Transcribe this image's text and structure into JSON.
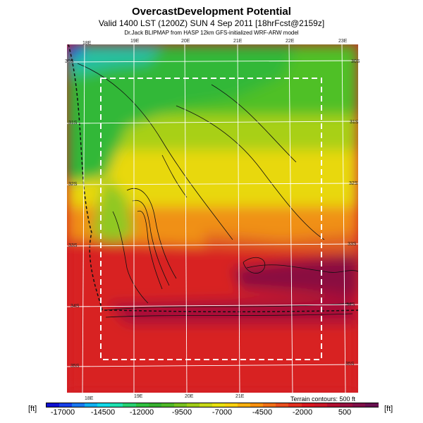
{
  "header": {
    "title": "OvercastDevelopment Potential",
    "subtitle": "Valid 1400 LST (1200Z) SUN 4 Sep 2011 [18hrFcst@2159z]",
    "source": "Dr.Jack BLIPMAP from HASP 12km GFS-initialized WRF-ARW model"
  },
  "map": {
    "lon_top": [
      "18E",
      "19E",
      "20E",
      "21E",
      "22E",
      "23E"
    ],
    "lon_bottom": [
      "18E",
      "19E",
      "20E",
      "21E"
    ],
    "lat_left": [
      "30S",
      "31S",
      "32S",
      "33S",
      "34S",
      "35S"
    ],
    "lat_right": [
      "30S",
      "31S",
      "32S",
      "33S",
      "34S",
      "35S"
    ],
    "terrain_note": "Terrain contours: 500 ft"
  },
  "colorbar": {
    "unit_left": "[ft]",
    "unit_right": "[ft]",
    "ticks": [
      "-17000",
      "-14500",
      "-12000",
      "-9500",
      "-7000",
      "-4500",
      "-2000",
      "500"
    ],
    "colors": [
      "#1010d0",
      "#1840e8",
      "#1a78f0",
      "#10b0f0",
      "#12d8e8",
      "#20e0b0",
      "#28d070",
      "#30c040",
      "#38b030",
      "#50b828",
      "#78c020",
      "#a0cc18",
      "#c8d818",
      "#e8e010",
      "#f8d010",
      "#f8b010",
      "#f89010",
      "#f07018",
      "#e85020",
      "#e03020",
      "#d81820",
      "#c81828",
      "#b01030",
      "#981040",
      "#801048",
      "#681050"
    ]
  }
}
